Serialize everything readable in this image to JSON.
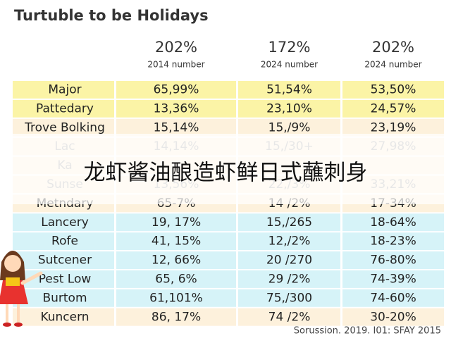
{
  "header": {
    "title": "Turtuble to be Holidays"
  },
  "columns": [
    {
      "value": "202%",
      "label": "2014 number"
    },
    {
      "value": "172%",
      "label": "2024 number"
    },
    {
      "value": "202%",
      "label": "2024 number"
    }
  ],
  "table": {
    "rows": [
      [
        "Major",
        "65,99%",
        "51,54%",
        "53,50%"
      ],
      [
        "Pattedary",
        "13,36%",
        "23,10%",
        "24,57%"
      ],
      [
        "Trove Bolking",
        "15,14%",
        "15,/9%",
        "23,19%"
      ],
      [
        "Lac",
        "14,14%",
        "15,/30+",
        "27,98%"
      ],
      [
        "Ka"
      ],
      [
        "Sunse",
        "13,56%",
        "22,/3%",
        "33,21%"
      ],
      [
        "Metndary",
        "65-7%",
        "14 /2%",
        "17-34%"
      ],
      [
        "Lancery",
        "19, 17%",
        "15,/265",
        "18-64%"
      ],
      [
        "Rofe",
        "41, 15%",
        "12,/2%",
        "18-23%"
      ],
      [
        "Sutcener",
        "12, 66%",
        "20 /270",
        "76-80%"
      ],
      [
        "Pest Low",
        "65, 6%",
        "29 /2%",
        "74-39%"
      ],
      [
        "Burtom",
        "61,101%",
        "75,/300",
        "74-60%"
      ],
      [
        "Kuncern",
        "86, 17%",
        "74 /2%",
        "30-20%"
      ]
    ]
  },
  "overlay": {
    "text": "龙虾酱油酿造虾鲜日式蘸刺身"
  },
  "footer": {
    "source": "Sorussion. 2019. I01: SFAY 2015"
  }
}
